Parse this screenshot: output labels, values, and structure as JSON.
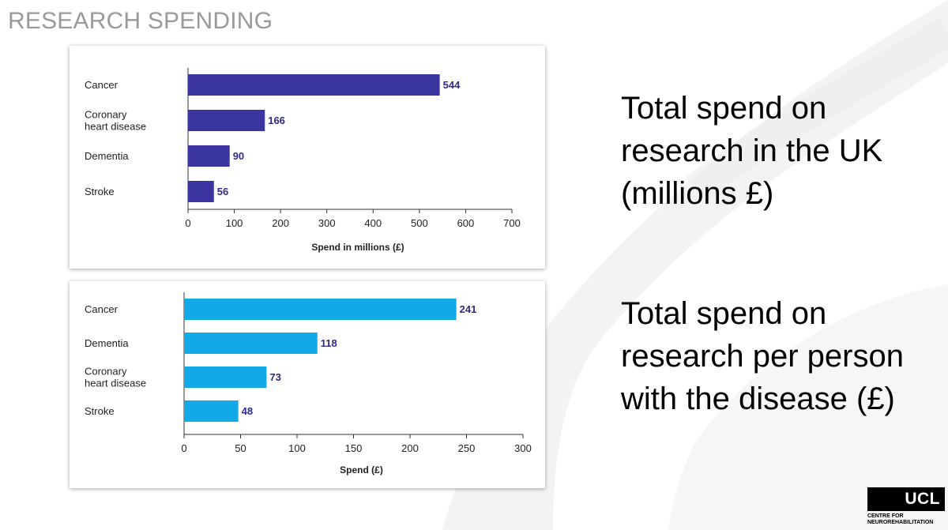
{
  "slide": {
    "title": "RESEARCH SPENDING",
    "desc_1": "Total spend on research in the UK (millions £)",
    "desc_2": "Total spend on research per person with the disease (£)"
  },
  "logo": {
    "wordmark": "UCL",
    "subtitle": "CENTRE FOR\nNEUROREHABILITATION"
  },
  "colors": {
    "chart1_bar": "#3a35a0",
    "chart2_bar": "#13a8e6",
    "value_label": "#2e2a8a"
  },
  "chart_data": [
    {
      "type": "bar",
      "orientation": "horizontal",
      "categories": [
        "Cancer",
        "Coronary heart disease",
        "Dementia",
        "Stroke"
      ],
      "values": [
        544,
        166,
        90,
        56
      ],
      "title": "",
      "xlabel": "Spend in millions (£)",
      "ylabel": "",
      "xlim": [
        0,
        700
      ],
      "ticks": [
        0,
        100,
        200,
        300,
        400,
        500,
        600,
        700
      ],
      "grid": false
    },
    {
      "type": "bar",
      "orientation": "horizontal",
      "categories": [
        "Cancer",
        "Dementia",
        "Coronary heart disease",
        "Stroke"
      ],
      "values": [
        241,
        118,
        73,
        48
      ],
      "title": "",
      "xlabel": "Spend (£)",
      "ylabel": "",
      "xlim": [
        0,
        300
      ],
      "ticks": [
        0,
        50,
        100,
        150,
        200,
        250,
        300
      ],
      "grid": false
    }
  ]
}
